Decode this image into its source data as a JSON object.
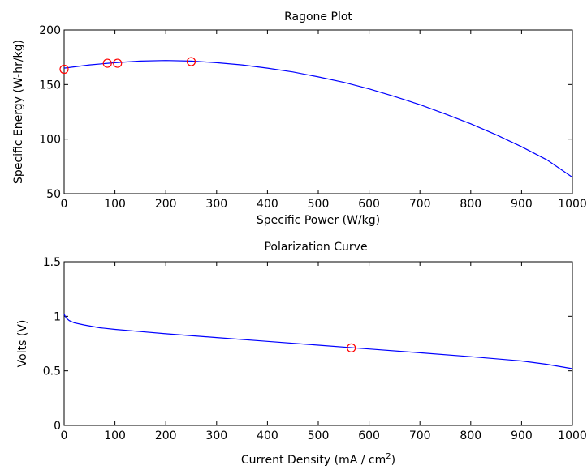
{
  "figure": {
    "background": "#ffffff",
    "line_color": "#0000ff",
    "marker_color": "#ff0000",
    "axis_color": "#000000"
  },
  "chart_data": [
    {
      "type": "line",
      "title": "Ragone Plot",
      "xlabel": "Specific Power (W/kg)",
      "ylabel": "Specific Energy (W-hr/kg)",
      "xlim": [
        0,
        1000
      ],
      "ylim": [
        50,
        200
      ],
      "xticks": [
        0,
        100,
        200,
        300,
        400,
        500,
        600,
        700,
        800,
        900,
        1000
      ],
      "yticks": [
        50,
        100,
        150,
        200
      ],
      "grid": false,
      "series": [
        {
          "kind": "line",
          "x": [
            0,
            50,
            100,
            150,
            200,
            250,
            300,
            350,
            400,
            450,
            500,
            550,
            600,
            650,
            700,
            750,
            800,
            850,
            900,
            950,
            1000
          ],
          "y": [
            165,
            168,
            170,
            171.5,
            172,
            171.5,
            170,
            168,
            165,
            161.5,
            157,
            152,
            146,
            139,
            131.5,
            123,
            114,
            104,
            93,
            81,
            65
          ]
        },
        {
          "kind": "markers",
          "x": [
            0,
            85,
            105,
            250
          ],
          "y": [
            164,
            169.5,
            169.5,
            171
          ]
        }
      ]
    },
    {
      "type": "line",
      "title": "Polarization Curve",
      "xlabel": "Current Density (mA / cm",
      "xlabel_sup": "2",
      "xlabel_end": ")",
      "ylabel": "Volts (V)",
      "xlim": [
        0,
        1000
      ],
      "ylim": [
        0,
        1.5
      ],
      "xticks": [
        0,
        100,
        200,
        300,
        400,
        500,
        600,
        700,
        800,
        900,
        1000
      ],
      "yticks": [
        0,
        0.5,
        1,
        1.5
      ],
      "grid": false,
      "series": [
        {
          "kind": "line",
          "x": [
            0,
            2,
            5,
            10,
            20,
            40,
            70,
            100,
            150,
            200,
            300,
            400,
            500,
            600,
            700,
            800,
            900,
            950,
            1000
          ],
          "y": [
            1.02,
            1.0,
            0.98,
            0.96,
            0.94,
            0.92,
            0.895,
            0.88,
            0.86,
            0.84,
            0.805,
            0.77,
            0.735,
            0.7,
            0.665,
            0.63,
            0.59,
            0.56,
            0.52
          ]
        },
        {
          "kind": "markers",
          "x": [
            565
          ],
          "y": [
            0.71
          ]
        }
      ]
    }
  ]
}
